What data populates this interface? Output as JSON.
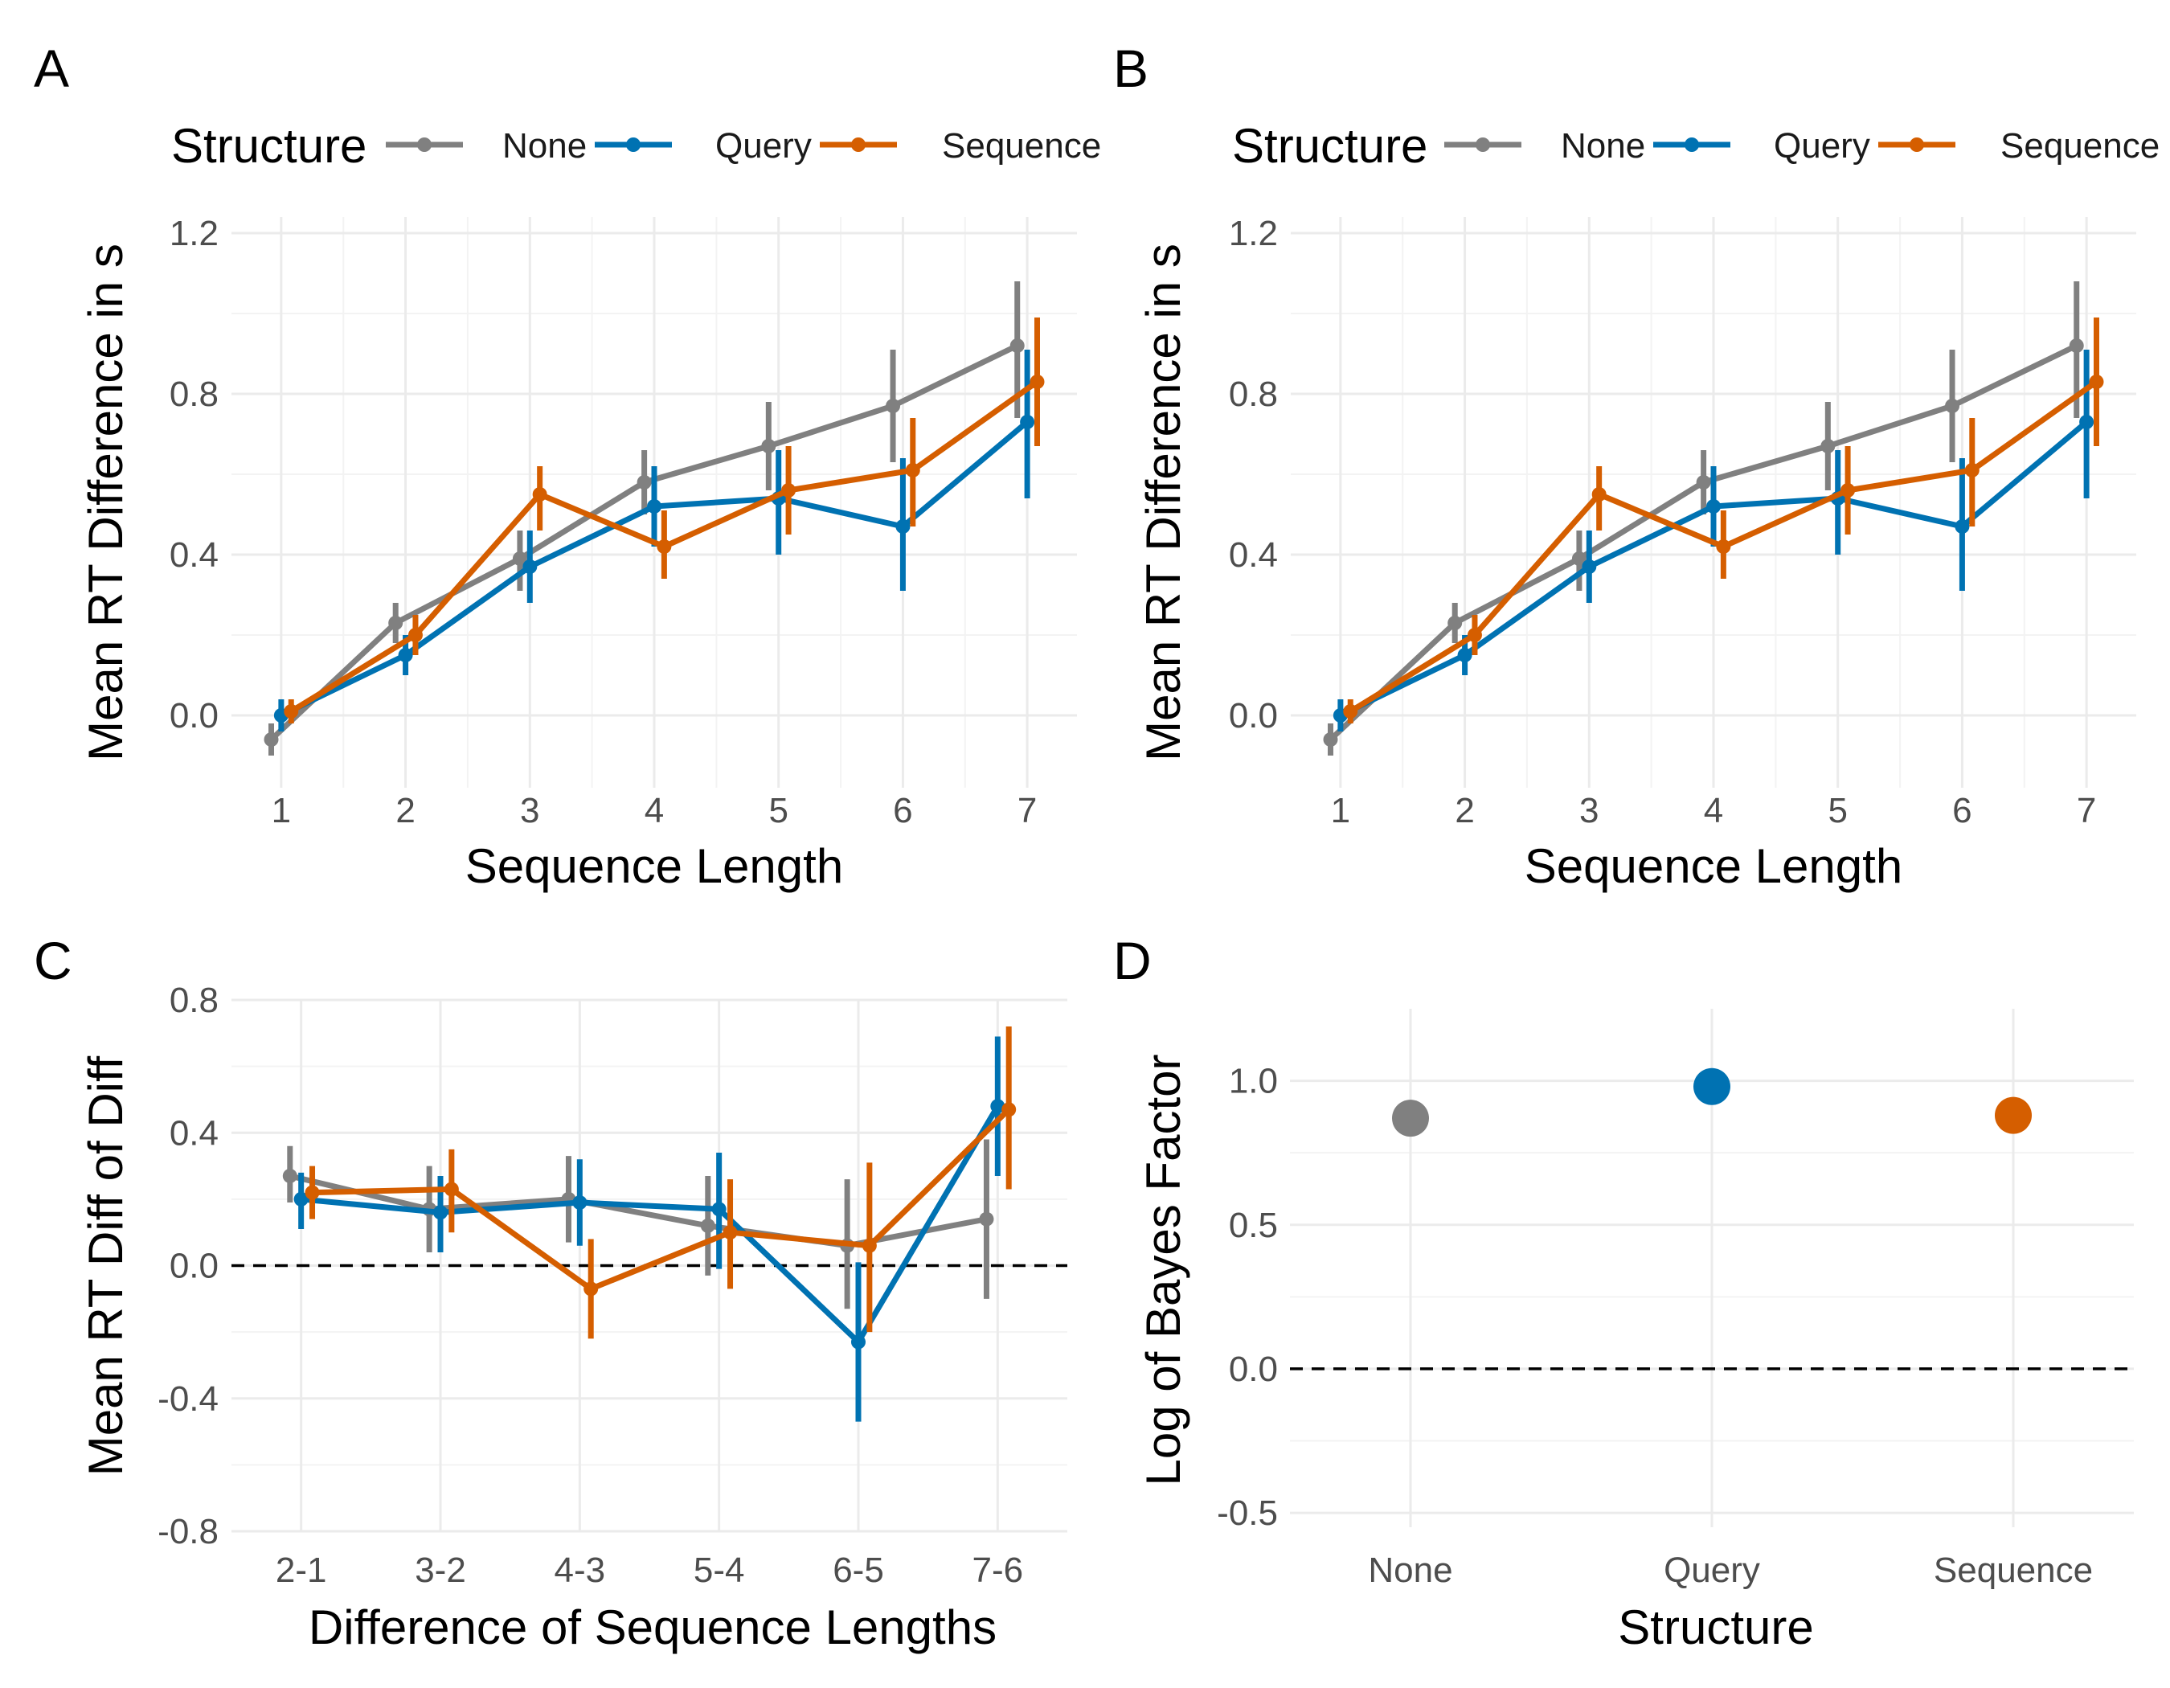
{
  "colors": {
    "None": "#808080",
    "Query": "#0072B2",
    "Sequence": "#D55E00"
  },
  "chart_data": [
    {
      "panel": "A",
      "type": "line",
      "xlabel": "Sequence Length",
      "ylabel": "Mean RT Difference in s",
      "legend_title": "Structure",
      "legend_position": "top",
      "grid": true,
      "x": [
        1,
        2,
        3,
        4,
        5,
        6,
        7
      ],
      "xlim": [
        0.6,
        7.4
      ],
      "ylim": [
        -0.18,
        1.24
      ],
      "yticks": [
        0.0,
        0.4,
        0.8,
        1.2
      ],
      "ytick_labels": [
        "0.0",
        "0.4",
        "0.8",
        "1.2"
      ],
      "series": [
        {
          "name": "None",
          "values": [
            -0.06,
            0.23,
            0.39,
            0.58,
            0.67,
            0.77,
            0.92
          ],
          "err_low": [
            -0.1,
            0.18,
            0.31,
            0.5,
            0.56,
            0.63,
            0.74
          ],
          "err_high": [
            -0.02,
            0.28,
            0.46,
            0.66,
            0.78,
            0.91,
            1.08
          ]
        },
        {
          "name": "Query",
          "values": [
            0.0,
            0.15,
            0.37,
            0.52,
            0.54,
            0.47,
            0.73
          ],
          "err_low": [
            -0.04,
            0.1,
            0.28,
            0.42,
            0.4,
            0.31,
            0.54
          ],
          "err_high": [
            0.04,
            0.2,
            0.46,
            0.62,
            0.66,
            0.64,
            0.91
          ]
        },
        {
          "name": "Sequence",
          "values": [
            0.01,
            0.2,
            0.55,
            0.42,
            0.56,
            0.61,
            0.83
          ],
          "err_low": [
            -0.02,
            0.15,
            0.46,
            0.34,
            0.45,
            0.47,
            0.67
          ],
          "err_high": [
            0.04,
            0.25,
            0.62,
            0.51,
            0.67,
            0.74,
            0.99
          ]
        }
      ]
    },
    {
      "panel": "B",
      "type": "line",
      "xlabel": "Sequence Length",
      "ylabel": "Mean RT Difference in s",
      "legend_title": "Structure",
      "legend_position": "top",
      "grid": true,
      "x": [
        1,
        2,
        3,
        4,
        5,
        6,
        7
      ],
      "xlim": [
        0.6,
        7.4
      ],
      "ylim": [
        -0.18,
        1.24
      ],
      "yticks": [
        0.0,
        0.4,
        0.8,
        1.2
      ],
      "ytick_labels": [
        "0.0",
        "0.4",
        "0.8",
        "1.2"
      ],
      "series": [
        {
          "name": "None",
          "values": [
            -0.06,
            0.23,
            0.39,
            0.58,
            0.67,
            0.77,
            0.92
          ],
          "err_low": [
            -0.1,
            0.18,
            0.31,
            0.5,
            0.56,
            0.63,
            0.74
          ],
          "err_high": [
            -0.02,
            0.28,
            0.46,
            0.66,
            0.78,
            0.91,
            1.08
          ]
        },
        {
          "name": "Query",
          "values": [
            0.0,
            0.15,
            0.37,
            0.52,
            0.54,
            0.47,
            0.73
          ],
          "err_low": [
            -0.04,
            0.1,
            0.28,
            0.42,
            0.4,
            0.31,
            0.54
          ],
          "err_high": [
            0.04,
            0.2,
            0.46,
            0.62,
            0.66,
            0.64,
            0.91
          ]
        },
        {
          "name": "Sequence",
          "values": [
            0.01,
            0.2,
            0.55,
            0.42,
            0.56,
            0.61,
            0.83
          ],
          "err_low": [
            -0.02,
            0.15,
            0.46,
            0.34,
            0.45,
            0.47,
            0.67
          ],
          "err_high": [
            0.04,
            0.25,
            0.62,
            0.51,
            0.67,
            0.74,
            0.99
          ]
        }
      ]
    },
    {
      "panel": "C",
      "type": "line",
      "xlabel": "Difference of Sequence Lengths",
      "ylabel": "Mean RT Diff of Diff",
      "grid": true,
      "categories": [
        "2-1",
        "3-2",
        "4-3",
        "5-4",
        "6-5",
        "7-6"
      ],
      "ylim": [
        -0.8,
        0.8
      ],
      "yticks": [
        -0.8,
        -0.4,
        0.0,
        0.4,
        0.8
      ],
      "ytick_labels": [
        "-0.8",
        "-0.4",
        "0.0",
        "0.4",
        "0.8"
      ],
      "reference_line": 0.0,
      "series": [
        {
          "name": "None",
          "values": [
            0.27,
            0.17,
            0.2,
            0.12,
            0.06,
            0.14
          ],
          "err_low": [
            0.19,
            0.04,
            0.07,
            -0.03,
            -0.13,
            -0.1
          ],
          "err_high": [
            0.36,
            0.3,
            0.33,
            0.27,
            0.26,
            0.38
          ]
        },
        {
          "name": "Query",
          "values": [
            0.2,
            0.16,
            0.19,
            0.17,
            -0.23,
            0.48
          ],
          "err_low": [
            0.11,
            0.04,
            0.06,
            -0.01,
            -0.47,
            0.27
          ],
          "err_high": [
            0.28,
            0.27,
            0.32,
            0.34,
            0.01,
            0.69
          ]
        },
        {
          "name": "Sequence",
          "values": [
            0.22,
            0.23,
            -0.07,
            0.1,
            0.06,
            0.47
          ],
          "err_low": [
            0.14,
            0.1,
            -0.22,
            -0.07,
            -0.2,
            0.23
          ],
          "err_high": [
            0.3,
            0.35,
            0.08,
            0.26,
            0.31,
            0.72
          ]
        }
      ]
    },
    {
      "panel": "D",
      "type": "scatter",
      "xlabel": "Structure",
      "ylabel": "Log of Bayes Factor",
      "grid": true,
      "categories": [
        "None",
        "Query",
        "Sequence"
      ],
      "values": [
        0.87,
        0.98,
        0.88
      ],
      "ylim": [
        -0.55,
        1.25
      ],
      "yticks": [
        -0.5,
        0.0,
        0.5,
        1.0
      ],
      "ytick_labels": [
        "-0.5",
        "0.0",
        "0.5",
        "1.0"
      ],
      "reference_line": 0.0
    }
  ]
}
